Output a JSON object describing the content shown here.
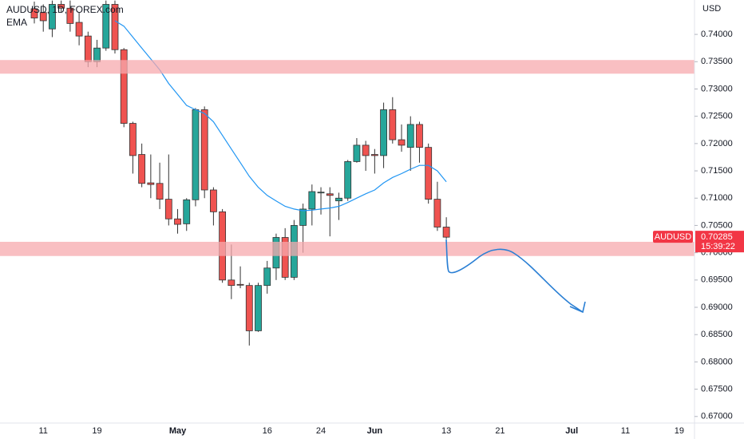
{
  "chart_data": {
    "type": "candlestick",
    "title": "AUDUSD, 1D, FOREX.com",
    "y_label": "USD",
    "up_color": "#26a69a",
    "down_color": "#ef5350",
    "grid": false,
    "ylim": [
      0.6688,
      0.7463
    ],
    "yticks": [
      {
        "value": 0.67,
        "label": "0.67000"
      },
      {
        "value": 0.675,
        "label": "0.67500"
      },
      {
        "value": 0.68,
        "label": "0.68000"
      },
      {
        "value": 0.685,
        "label": "0.68500"
      },
      {
        "value": 0.69,
        "label": "0.69000"
      },
      {
        "value": 0.695,
        "label": "0.69500"
      },
      {
        "value": 0.7,
        "label": "0.70000"
      },
      {
        "value": 0.705,
        "label": "0.70500"
      },
      {
        "value": 0.71,
        "label": "0.71000"
      },
      {
        "value": 0.715,
        "label": "0.71500"
      },
      {
        "value": 0.72,
        "label": "0.72000"
      },
      {
        "value": 0.725,
        "label": "0.72500"
      },
      {
        "value": 0.73,
        "label": "0.73000"
      },
      {
        "value": 0.735,
        "label": "0.73500"
      },
      {
        "value": 0.74,
        "label": "0.74000"
      }
    ],
    "categories": [
      null,
      "11",
      null,
      null,
      null,
      null,
      null,
      "19",
      null,
      null,
      null,
      null,
      null,
      null,
      null,
      null,
      "May",
      null,
      null,
      null,
      null,
      null,
      null,
      null,
      null,
      null,
      "16",
      null,
      null,
      null,
      null,
      null,
      "24",
      null,
      null,
      null,
      null,
      null,
      "Jun",
      null,
      null,
      null,
      null,
      null,
      null,
      null,
      "13",
      null,
      null,
      null,
      null,
      null,
      "21",
      null,
      null,
      null,
      null,
      null,
      null,
      null,
      "Jul",
      null,
      null,
      null,
      null,
      null,
      "11",
      null,
      null,
      null,
      null,
      null,
      "19"
    ],
    "open": [
      0.7447,
      0.744,
      0.741,
      0.7455,
      0.7448,
      0.7422,
      0.7397,
      0.735,
      0.7375,
      0.7455,
      0.7372,
      0.7237,
      0.718,
      0.7128,
      0.7127,
      0.7098,
      0.7062,
      0.7053,
      0.7097,
      0.7262,
      0.7115,
      0.7075,
      0.695,
      0.6942,
      0.694,
      0.6857,
      0.694,
      0.6972,
      0.7028,
      0.6955,
      0.705,
      0.708,
      0.711,
      0.7108,
      0.7095,
      0.71,
      0.7167,
      0.7197,
      0.718,
      0.7178,
      0.7262,
      0.7207,
      0.7193,
      0.7235,
      0.7193,
      0.7098,
      0.7047,
      null,
      null,
      null,
      null,
      null,
      null,
      null,
      null,
      null,
      null,
      null,
      null,
      null,
      null,
      null,
      null,
      null,
      null,
      null,
      null,
      null,
      null,
      null,
      null,
      null,
      null
    ],
    "high": [
      0.746,
      0.7455,
      0.7462,
      0.7462,
      0.7462,
      0.744,
      0.7405,
      0.739,
      0.7462,
      0.7462,
      0.7375,
      0.724,
      0.72,
      0.718,
      0.7165,
      0.718,
      0.708,
      0.71,
      0.7265,
      0.7268,
      0.712,
      0.708,
      0.7015,
      0.6975,
      0.6945,
      0.6945,
      0.6985,
      0.7035,
      0.7045,
      0.706,
      0.709,
      0.7125,
      0.712,
      0.712,
      0.711,
      0.717,
      0.721,
      0.7205,
      0.719,
      0.7275,
      0.7285,
      0.7235,
      0.725,
      0.724,
      0.72,
      0.713,
      0.7065,
      null,
      null,
      null,
      null,
      null,
      null,
      null,
      null,
      null,
      null,
      null,
      null,
      null,
      null,
      null,
      null,
      null,
      null,
      null,
      null,
      null,
      null,
      null,
      null,
      null,
      null
    ],
    "low": [
      0.742,
      0.7405,
      0.7395,
      0.744,
      0.7405,
      0.738,
      0.734,
      0.734,
      0.737,
      0.7365,
      0.723,
      0.7145,
      0.712,
      0.71,
      0.708,
      0.705,
      0.7035,
      0.704,
      0.7085,
      0.71,
      0.705,
      0.6945,
      0.6915,
      0.6935,
      0.683,
      0.6855,
      0.6925,
      0.695,
      0.695,
      0.695,
      0.7,
      0.705,
      0.707,
      0.703,
      0.706,
      0.7095,
      0.7165,
      0.715,
      0.7145,
      0.7155,
      0.72,
      0.7185,
      0.715,
      0.7165,
      0.709,
      0.704,
      0.7025,
      null,
      null,
      null,
      null,
      null,
      null,
      null,
      null,
      null,
      null,
      null,
      null,
      null,
      null,
      null,
      null,
      null,
      null,
      null,
      null,
      null,
      null,
      null,
      null,
      null,
      null
    ],
    "close": [
      0.743,
      0.7425,
      0.7455,
      0.7448,
      0.742,
      0.7397,
      0.735,
      0.7375,
      0.7455,
      0.7372,
      0.7237,
      0.7178,
      0.7127,
      0.7125,
      0.7098,
      0.7062,
      0.7052,
      0.7097,
      0.7262,
      0.7115,
      0.7075,
      0.695,
      0.694,
      0.6941,
      0.6857,
      0.694,
      0.6972,
      0.7028,
      0.6955,
      0.705,
      0.708,
      0.7112,
      0.7111,
      0.7105,
      0.71,
      0.7167,
      0.7197,
      0.7178,
      0.7178,
      0.7262,
      0.7207,
      0.7197,
      0.7235,
      0.7193,
      0.7098,
      0.7047,
      0.70285,
      null,
      null,
      null,
      null,
      null,
      null,
      null,
      null,
      null,
      null,
      null,
      null,
      null,
      null,
      null,
      null,
      null,
      null,
      null,
      null,
      null,
      null,
      null,
      null,
      null,
      null
    ],
    "indicator": {
      "name": "EMA",
      "color": "#2196f3",
      "values": [
        null,
        null,
        null,
        null,
        null,
        null,
        null,
        null,
        null,
        0.7425,
        0.7415,
        0.7395,
        0.7375,
        0.7355,
        0.7335,
        0.731,
        0.729,
        0.727,
        0.7262,
        0.7255,
        0.724,
        0.7215,
        0.719,
        0.7165,
        0.714,
        0.712,
        0.7105,
        0.7095,
        0.7085,
        0.708,
        0.7077,
        0.7078,
        0.708,
        0.7082,
        0.7085,
        0.7092,
        0.71,
        0.7108,
        0.7115,
        0.7128,
        0.7138,
        0.7145,
        0.7153,
        0.716,
        0.716,
        0.715,
        0.713,
        null,
        null,
        null,
        null,
        null,
        null,
        null,
        null,
        null,
        null,
        null,
        null,
        null,
        null,
        null,
        null,
        null,
        null,
        null,
        null,
        null,
        null,
        null,
        null,
        null,
        null
      ]
    },
    "zones": [
      {
        "from": 0.7328,
        "to": 0.7353,
        "color": "#f7a9ad"
      },
      {
        "from": 0.6994,
        "to": 0.702,
        "color": "#f7a9ad"
      }
    ],
    "last_price": {
      "label": "AUDUSD",
      "value": 0.70285,
      "countdown": "15:39:22",
      "color": "#f23645"
    }
  }
}
